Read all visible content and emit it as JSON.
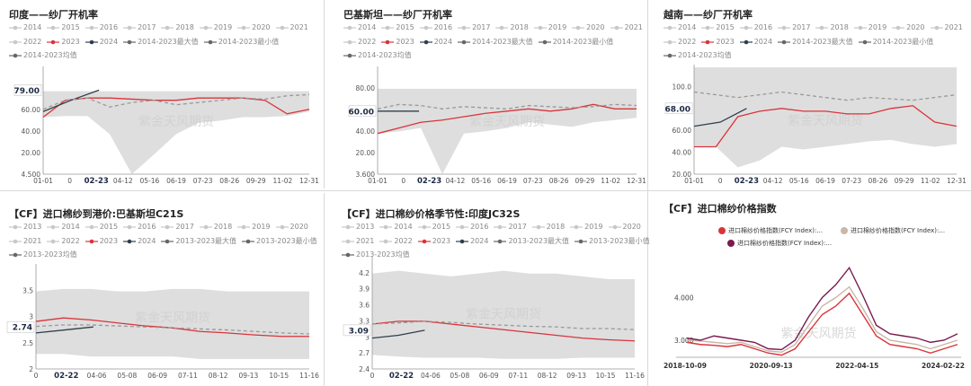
{
  "watermark": "紫金天风期货",
  "colors": {
    "y2023": "#d9343a",
    "y2024": "#2f3e4e",
    "max": "#d6d6d6",
    "avg": "#999999",
    "grey": "#c8c8c8"
  },
  "chart_data": [
    {
      "type": "line",
      "title": "印度——纱厂开机率",
      "legend": [
        "2014",
        "2015",
        "2016",
        "2017",
        "2018",
        "2019",
        "2020",
        "2021",
        "2022",
        "2023",
        "2024",
        "2014-2023最大值",
        "2014-2023最小值",
        "2014-2023均值"
      ],
      "ylim": [
        4.5,
        100
      ],
      "yticks": [
        "4.500",
        "20.00",
        "40.00",
        "60.00",
        "80.00"
      ],
      "xticks": [
        "01-01",
        "0",
        "02-23",
        "04-12",
        "05-16",
        "06-19",
        "07-23",
        "08-26",
        "09-29",
        "11-02",
        "12-31"
      ],
      "highlight_x": "02-23",
      "highlight_y": "79.00",
      "highlight_value": 79,
      "band_max": [
        78,
        78,
        78,
        78,
        78,
        78,
        78,
        78,
        78,
        78,
        78,
        78,
        78
      ],
      "band_min": [
        55,
        56,
        56,
        40,
        4.5,
        22,
        40,
        50,
        52,
        55,
        55,
        56,
        60
      ],
      "series": [
        {
          "name": "2023",
          "values": [
            55,
            70,
            72,
            72,
            71,
            70,
            70,
            72,
            72,
            72,
            70,
            58,
            62
          ]
        },
        {
          "name": "2024",
          "values": [
            60,
            70,
            79
          ]
        },
        {
          "name": "2014-2023均值",
          "values": [
            62,
            70,
            72,
            64,
            68,
            70,
            66,
            68,
            70,
            72,
            71,
            74,
            75
          ]
        }
      ]
    },
    {
      "type": "line",
      "title": "巴基斯坦——纱厂开机率",
      "legend": [
        "2014",
        "2015",
        "2016",
        "2017",
        "2018",
        "2019",
        "2020",
        "2021",
        "2022",
        "2023",
        "2024",
        "2014-2023最大值",
        "2014-2023最小值",
        "2014-2023均值"
      ],
      "ylim": [
        3.6,
        100
      ],
      "yticks": [
        "3.600",
        "20.00",
        "40.00",
        "60.00",
        "80.00"
      ],
      "xticks": [
        "01-01",
        "0",
        "02-23",
        "04-12",
        "05-16",
        "06-19",
        "07-23",
        "08-26",
        "09-29",
        "11-02",
        "12-31"
      ],
      "highlight_x": "02-23",
      "highlight_y": "60.00",
      "highlight_value": 60,
      "band_max": [
        80,
        80,
        80,
        80,
        80,
        80,
        80,
        80,
        80,
        80,
        80,
        80,
        80
      ],
      "band_min": [
        40,
        42,
        45,
        3.6,
        40,
        42,
        45,
        50,
        48,
        46,
        50,
        52,
        54
      ],
      "series": [
        {
          "name": "2023",
          "values": [
            40,
            45,
            50,
            52,
            55,
            58,
            60,
            62,
            60,
            62,
            66,
            62,
            62
          ]
        },
        {
          "name": "2024",
          "values": [
            60,
            60,
            60
          ]
        },
        {
          "name": "2014-2023均值",
          "values": [
            62,
            66,
            65,
            62,
            64,
            63,
            62,
            65,
            64,
            63,
            64,
            66,
            65
          ]
        }
      ]
    },
    {
      "type": "line",
      "title": "越南——纱厂开机率",
      "legend": [
        "2014",
        "2015",
        "2016",
        "2017",
        "2018",
        "2019",
        "2020",
        "2021",
        "2022",
        "2023",
        "2024",
        "2014-2023最大值",
        "2014-2023最小值",
        "2014-2023均值"
      ],
      "ylim": [
        20,
        100
      ],
      "yticks": [
        "20.00",
        "40.00",
        "60.00",
        "80.00",
        "100.0"
      ],
      "xticks": [
        "01-01",
        "0",
        "02-23",
        "04-12",
        "05-16",
        "06-19",
        "07-23",
        "08-26",
        "09-29",
        "11-02",
        "12-31"
      ],
      "highlight_x": "02-23",
      "highlight_y": "68.00",
      "highlight_value": 68,
      "band_max": [
        98,
        98,
        98,
        98,
        98,
        98,
        98,
        98,
        98,
        98,
        98,
        98,
        98
      ],
      "band_min": [
        40,
        40,
        25,
        30,
        40,
        38,
        40,
        42,
        44,
        45,
        42,
        40,
        42
      ],
      "series": [
        {
          "name": "2023",
          "values": [
            40,
            40,
            62,
            66,
            68,
            66,
            66,
            64,
            64,
            68,
            70,
            58,
            55
          ]
        },
        {
          "name": "2024",
          "values": [
            55,
            58,
            68
          ]
        },
        {
          "name": "2014-2023均值",
          "values": [
            80,
            78,
            76,
            78,
            80,
            78,
            76,
            74,
            76,
            75,
            74,
            76,
            78
          ]
        }
      ]
    },
    {
      "type": "line",
      "title": "【CF】进口棉纱到港价:巴基斯坦C21S",
      "legend": [
        "2013",
        "2014",
        "2015",
        "2016",
        "2017",
        "2018",
        "2019",
        "2020",
        "2021",
        "2022",
        "2023",
        "2024",
        "2013-2023最大值",
        "2013-2023最小值",
        "2013-2023均值"
      ],
      "ylim": [
        1.9,
        4.0
      ],
      "yticks": [
        "2",
        "2.5",
        "3",
        "3.5"
      ],
      "xticks": [
        "0",
        "02-22",
        "04-06",
        "05-08",
        "06-09",
        "07-11",
        "08-12",
        "09-13",
        "10-15",
        "11-16"
      ],
      "highlight_x": "02-22",
      "highlight_y": "2.74",
      "highlight_value": 2.74,
      "band_max": [
        3.45,
        3.5,
        3.5,
        3.45,
        3.45,
        3.5,
        3.5,
        3.45,
        3.45,
        3.45,
        3.45
      ],
      "band_min": [
        2.2,
        2.2,
        2.15,
        2.15,
        2.15,
        2.15,
        2.1,
        2.1,
        2.1,
        2.1,
        2.1
      ],
      "series": [
        {
          "name": "2023",
          "values": [
            2.85,
            2.92,
            2.88,
            2.82,
            2.76,
            2.72,
            2.65,
            2.62,
            2.58,
            2.55,
            2.55
          ]
        },
        {
          "name": "2024",
          "values": [
            2.62,
            2.68,
            2.74
          ]
        },
        {
          "name": "2013-2023均值",
          "values": [
            2.75,
            2.78,
            2.78,
            2.76,
            2.74,
            2.72,
            2.7,
            2.68,
            2.65,
            2.62,
            2.6
          ]
        }
      ]
    },
    {
      "type": "line",
      "title": "【CF】进口棉纱价格季节性:印度JC32S",
      "legend": [
        "2013",
        "2014",
        "2015",
        "2016",
        "2017",
        "2018",
        "2019",
        "2020",
        "2021",
        "2022",
        "2023",
        "2024",
        "2013-2023最大值",
        "2013-2023最小值",
        "2013-2023均值"
      ],
      "ylim": [
        2.4,
        4.4
      ],
      "yticks": [
        "2.4",
        "2.7",
        "3",
        "3.3",
        "3.6",
        "3.9",
        "4.2"
      ],
      "xticks": [
        "0",
        "02-22",
        "04-06",
        "05-08",
        "06-09",
        "07-11",
        "08-12",
        "09-13",
        "10-15",
        "11-16"
      ],
      "highlight_x": "02-22",
      "highlight_y": "3.09",
      "highlight_value": 3.09,
      "band_max": [
        4.1,
        4.15,
        4.1,
        4.05,
        4.1,
        4.15,
        4.1,
        4.1,
        4.05,
        4.0,
        4.0
      ],
      "band_min": [
        2.65,
        2.62,
        2.6,
        2.6,
        2.6,
        2.58,
        2.58,
        2.58,
        2.6,
        2.6,
        2.6
      ],
      "series": [
        {
          "name": "2023",
          "values": [
            3.2,
            3.25,
            3.25,
            3.2,
            3.15,
            3.1,
            3.05,
            3.0,
            2.95,
            2.92,
            2.9
          ]
        },
        {
          "name": "2024",
          "values": [
            2.95,
            3.0,
            3.09
          ]
        },
        {
          "name": "2013-2023均值",
          "values": [
            3.2,
            3.22,
            3.25,
            3.23,
            3.2,
            3.18,
            3.16,
            3.15,
            3.12,
            3.12,
            3.1
          ]
        }
      ]
    },
    {
      "type": "line",
      "title": "【CF】进口棉纱价格指数",
      "legend": [
        "进口棉纱价格指数(FCY Index):...",
        "进口棉纱价格指数(FCY Index):...",
        "进口棉纱价格指数(FCY Index):..."
      ],
      "ylim": [
        2.6,
        5.0
      ],
      "yticks": [
        "3.000",
        "4.000"
      ],
      "xticks": [
        "2018-10-09",
        "2020-09-13",
        "2022-04-15",
        "2024-02-22"
      ],
      "series": [
        {
          "name": "s1",
          "color": "#d9343a",
          "values": [
            2.95,
            2.9,
            2.88,
            2.85,
            2.9,
            2.8,
            2.7,
            2.65,
            2.8,
            3.2,
            3.6,
            3.8,
            4.1,
            3.6,
            3.1,
            2.9,
            2.85,
            2.8,
            2.7,
            2.8,
            2.9
          ]
        },
        {
          "name": "s2",
          "color": "#c9b7a8",
          "values": [
            3.0,
            2.98,
            2.95,
            2.92,
            2.95,
            2.85,
            2.75,
            2.72,
            2.9,
            3.35,
            3.8,
            4.0,
            4.25,
            3.75,
            3.2,
            3.0,
            2.95,
            2.9,
            2.8,
            2.9,
            3.0
          ]
        },
        {
          "name": "s3",
          "color": "#7a1a4e",
          "values": [
            3.05,
            3.0,
            3.1,
            3.05,
            3.0,
            2.95,
            2.8,
            2.78,
            3.0,
            3.55,
            4.0,
            4.3,
            4.7,
            4.05,
            3.35,
            3.15,
            3.1,
            3.05,
            2.95,
            3.0,
            3.15
          ]
        }
      ]
    }
  ]
}
